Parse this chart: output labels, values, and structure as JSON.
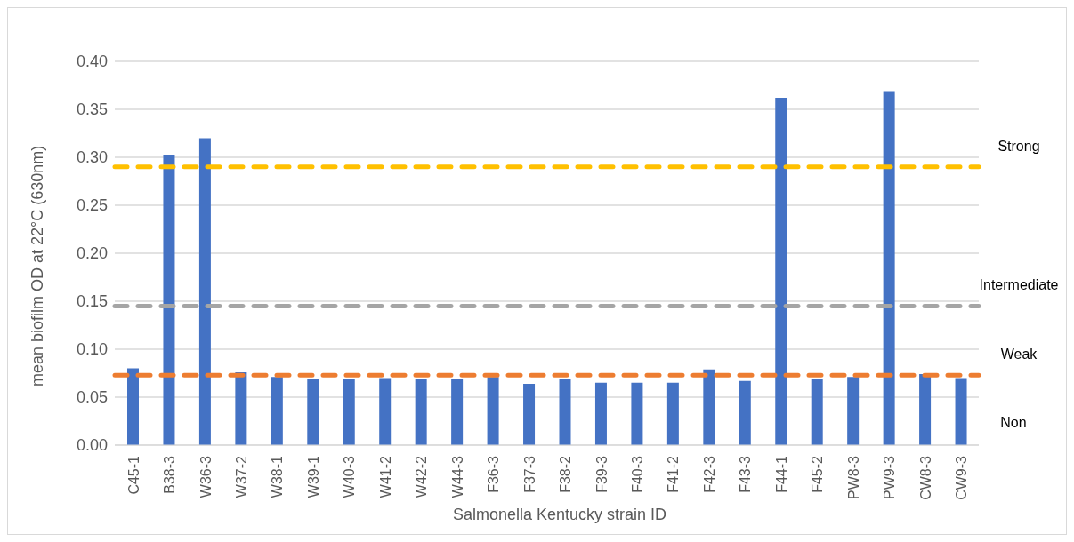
{
  "chart_data": {
    "type": "bar",
    "xlabel": "Salmonella Kentucky strain ID",
    "ylabel": "mean biofilm OD at 22°C (630nm)",
    "categories": [
      "C45-1",
      "B38-3",
      "W36-3",
      "W37-2",
      "W38-1",
      "W39-1",
      "W40-3",
      "W41-2",
      "W42-2",
      "W44-3",
      "F36-3",
      "F37-3",
      "F38-2",
      "F39-3",
      "F40-3",
      "F41-2",
      "F42-3",
      "F43-3",
      "F44-1",
      "F45-2",
      "PW8-3",
      "PW9-3",
      "CW8-3",
      "CW9-3"
    ],
    "values": [
      0.08,
      0.302,
      0.32,
      0.076,
      0.071,
      0.069,
      0.069,
      0.07,
      0.069,
      0.069,
      0.071,
      0.064,
      0.069,
      0.065,
      0.065,
      0.065,
      0.079,
      0.067,
      0.362,
      0.069,
      0.071,
      0.369,
      0.074,
      0.07
    ],
    "color": "#4472c4",
    "ylim": [
      0,
      0.4
    ],
    "yticks": [
      {
        "value": 0,
        "label": "0.00"
      },
      {
        "value": 0.05,
        "label": "0.05"
      },
      {
        "value": 0.1,
        "label": "0.10"
      },
      {
        "value": 0.15,
        "label": "0.15"
      },
      {
        "value": 0.2,
        "label": "0.20"
      },
      {
        "value": 0.25,
        "label": "0.25"
      },
      {
        "value": 0.3,
        "label": "0.30"
      },
      {
        "value": 0.35,
        "label": "0.35"
      },
      {
        "value": 0.4,
        "label": "0.40"
      }
    ],
    "grid": "y",
    "ref_lines": [
      {
        "axis": "y",
        "value": 0.29,
        "label": "Strong",
        "color": "#ffc000",
        "line_style": "dashed"
      },
      {
        "axis": "y",
        "value": 0.145,
        "label": "Intermediate",
        "color": "#a5a5a5",
        "line_style": "dashed"
      },
      {
        "axis": "y",
        "value": 0.073,
        "label": "Weak",
        "color": "#ed7d31",
        "line_style": "dashed"
      }
    ],
    "annotations": [
      "Non"
    ]
  }
}
